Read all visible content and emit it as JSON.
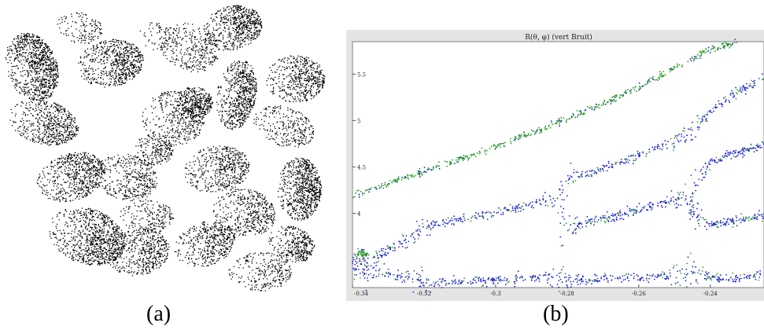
{
  "captions": {
    "a": "(a)",
    "b": "(b)"
  },
  "panel_a": {
    "description_type": "point-cloud rendering of plant leaves",
    "color": "#000000"
  },
  "chart_data": {
    "type": "scatter",
    "title": "R(θ, φ) (vert Bruit)",
    "xlabel": "",
    "ylabel": "",
    "xlim": [
      -0.34,
      -0.225
    ],
    "ylim": [
      3.2,
      5.85
    ],
    "xticks": [
      -0.34,
      -0.32,
      -0.3,
      -0.28,
      -0.26,
      -0.24
    ],
    "xtick_labels": [
      "-0.34",
      "-0.32",
      "-0.3",
      "-0.28",
      "-0.26",
      "-0.24"
    ],
    "yticks": [
      3.5,
      4,
      4.5,
      5,
      5.5
    ],
    "ytick_labels": [
      "3.5",
      "4",
      "4.5",
      "5",
      "5.5"
    ],
    "grid": false,
    "colors": {
      "signal": "#1f1fe0",
      "noise": "#2a9a2a",
      "frame": "#808080",
      "background": "#e4e4e4"
    },
    "series": [
      {
        "x": [
          -0.34,
          -0.33,
          -0.32,
          -0.31,
          -0.3,
          -0.29,
          -0.28,
          -0.27,
          -0.26,
          -0.25,
          -0.24,
          -0.232
        ],
        "values": [
          4.19,
          4.32,
          4.45,
          4.58,
          4.72,
          4.86,
          5.02,
          5.18,
          5.36,
          5.56,
          5.77,
          5.85
        ]
      },
      {
        "x": [
          -0.34,
          -0.33,
          -0.322,
          -0.32,
          -0.31,
          -0.3,
          -0.29,
          -0.282,
          -0.28,
          -0.27,
          -0.26,
          -0.25,
          -0.246,
          -0.24,
          -0.232,
          -0.225
        ],
        "values": [
          3.43,
          3.6,
          3.78,
          3.86,
          3.93,
          4.01,
          4.09,
          4.2,
          4.36,
          4.48,
          4.62,
          4.78,
          4.88,
          5.1,
          5.32,
          5.45
        ]
      },
      {
        "x": [
          -0.34,
          -0.33,
          -0.322,
          -0.32,
          -0.31,
          -0.3,
          -0.29,
          -0.282,
          -0.28,
          -0.27,
          -0.26,
          -0.25,
          -0.246,
          -0.24,
          -0.232,
          -0.225
        ],
        "values": [
          3.4,
          3.34,
          3.3,
          3.26,
          3.26,
          3.28,
          3.3,
          3.34,
          3.28,
          3.29,
          3.31,
          3.33,
          3.38,
          3.3,
          3.29,
          3.33
        ]
      },
      {
        "x": [
          -0.282,
          -0.28,
          -0.27,
          -0.26,
          -0.25,
          -0.246
        ],
        "values": [
          3.78,
          3.85,
          3.94,
          4.04,
          4.14,
          4.22
        ]
      },
      {
        "x": [
          -0.246,
          -0.244,
          -0.24,
          -0.232,
          -0.225
        ],
        "values": [
          4.08,
          4.3,
          4.55,
          4.66,
          4.74
        ]
      },
      {
        "x": [
          -0.246,
          -0.244,
          -0.24,
          -0.232,
          -0.225
        ],
        "values": [
          4.08,
          3.92,
          3.88,
          3.93,
          3.97
        ]
      }
    ],
    "noise_clusters": [
      {
        "x": -0.337,
        "y": 3.56
      }
    ]
  }
}
